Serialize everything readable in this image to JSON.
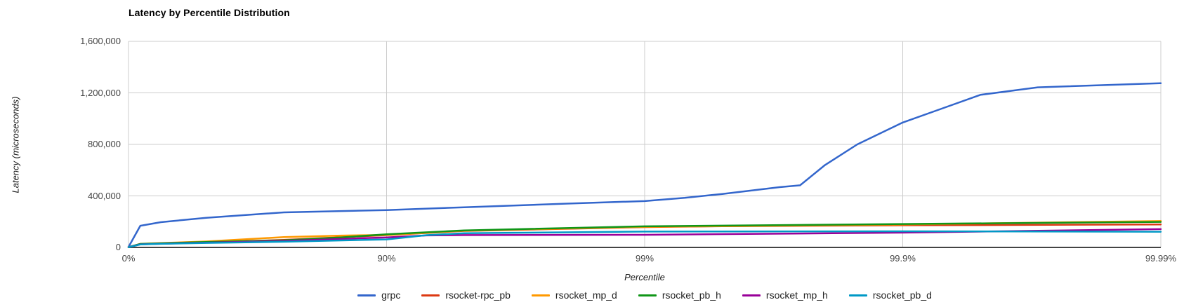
{
  "chart_data": {
    "type": "line",
    "title": "Latency by Percentile Distribution",
    "xlabel": "Percentile",
    "ylabel": "Latency (microseconds)",
    "x_scale": "log-percentile",
    "grid": true,
    "legend_position": "bottom",
    "ylim": [
      0,
      1600000
    ],
    "y_ticks": [
      {
        "label": "0",
        "value": 0
      },
      {
        "label": "400,000",
        "value": 400000
      },
      {
        "label": "800,000",
        "value": 800000
      },
      {
        "label": "1,200,000",
        "value": 1200000
      },
      {
        "label": "1,600,000",
        "value": 1600000
      }
    ],
    "x_ticks": [
      {
        "label": "0%",
        "pct": 0
      },
      {
        "label": "90%",
        "pct": 90
      },
      {
        "label": "99%",
        "pct": 99
      },
      {
        "label": "99.9%",
        "pct": 99.9
      },
      {
        "label": "99.99%",
        "pct": 99.99
      }
    ],
    "series": [
      {
        "name": "grpc",
        "color": "#3366cc",
        "points": [
          [
            0,
            3000
          ],
          [
            10,
            168000
          ],
          [
            25,
            196000
          ],
          [
            50,
            230000
          ],
          [
            75,
            272000
          ],
          [
            90,
            290000
          ],
          [
            95,
            312000
          ],
          [
            98,
            340000
          ],
          [
            99,
            360000
          ],
          [
            99.3,
            385000
          ],
          [
            99.5,
            415000
          ],
          [
            99.7,
            468000
          ],
          [
            99.75,
            482000
          ],
          [
            99.8,
            640000
          ],
          [
            99.85,
            800000
          ],
          [
            99.9,
            970000
          ],
          [
            99.93,
            1080000
          ],
          [
            99.95,
            1185000
          ],
          [
            99.97,
            1243000
          ],
          [
            99.99,
            1275000
          ]
        ]
      },
      {
        "name": "rsocket-rpc_pb",
        "color": "#dc3912",
        "points": [
          [
            0,
            2000
          ],
          [
            10,
            26000
          ],
          [
            25,
            31000
          ],
          [
            50,
            40000
          ],
          [
            75,
            58000
          ],
          [
            90,
            95000
          ],
          [
            95,
            128000
          ],
          [
            99,
            158000
          ],
          [
            99.5,
            165000
          ],
          [
            99.9,
            172000
          ],
          [
            99.99,
            178000
          ]
        ]
      },
      {
        "name": "rsocket_mp_d",
        "color": "#ff9900",
        "points": [
          [
            0,
            2000
          ],
          [
            10,
            28000
          ],
          [
            25,
            34000
          ],
          [
            50,
            46000
          ],
          [
            75,
            80000
          ],
          [
            85,
            92000
          ],
          [
            90,
            97000
          ],
          [
            95,
            130000
          ],
          [
            99,
            160000
          ],
          [
            99.9,
            178000
          ],
          [
            99.99,
            205000
          ]
        ]
      },
      {
        "name": "rsocket_pb_h",
        "color": "#109618",
        "points": [
          [
            0,
            2000
          ],
          [
            10,
            27000
          ],
          [
            25,
            32000
          ],
          [
            50,
            42000
          ],
          [
            75,
            55000
          ],
          [
            85,
            78000
          ],
          [
            90,
            102000
          ],
          [
            95,
            132000
          ],
          [
            99,
            164000
          ],
          [
            99.9,
            182000
          ],
          [
            99.99,
            198000
          ]
        ]
      },
      {
        "name": "rsocket_mp_h",
        "color": "#990099",
        "points": [
          [
            0,
            2000
          ],
          [
            10,
            24000
          ],
          [
            25,
            29000
          ],
          [
            50,
            37000
          ],
          [
            75,
            50000
          ],
          [
            90,
            78000
          ],
          [
            93,
            93000
          ],
          [
            95,
            96000
          ],
          [
            99,
            98000
          ],
          [
            99.9,
            115000
          ],
          [
            99.99,
            142000
          ]
        ]
      },
      {
        "name": "rsocket_pb_d",
        "color": "#0099c6",
        "points": [
          [
            0,
            2000
          ],
          [
            10,
            23000
          ],
          [
            25,
            28000
          ],
          [
            50,
            35000
          ],
          [
            75,
            44000
          ],
          [
            90,
            62000
          ],
          [
            93,
            95000
          ],
          [
            95,
            110000
          ],
          [
            99,
            123000
          ],
          [
            99.9,
            125000
          ],
          [
            99.99,
            122000
          ]
        ]
      }
    ]
  }
}
